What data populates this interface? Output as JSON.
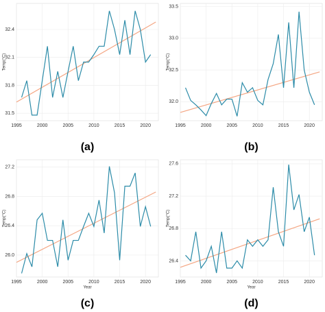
{
  "chart_data": [
    {
      "type": "line",
      "label": "(a)",
      "y_label": "Temp(°C)",
      "x": [
        1996,
        1997,
        1998,
        1999,
        2000,
        2001,
        2002,
        2003,
        2004,
        2005,
        2006,
        2007,
        2008,
        2009,
        2010,
        2011,
        2012,
        2013,
        2014,
        2015,
        2016,
        2017,
        2018,
        2019,
        2020,
        2021
      ],
      "series": [
        {
          "color": "#2b8ba8",
          "values": [
            31.67,
            31.85,
            31.48,
            31.48,
            31.85,
            32.22,
            31.67,
            31.95,
            31.67,
            31.95,
            32.22,
            31.85,
            32.05,
            32.05,
            32.13,
            32.22,
            32.22,
            32.6,
            32.4,
            32.13,
            32.5,
            32.13,
            32.6,
            32.4,
            32.05,
            32.13
          ]
        }
      ],
      "trend": {
        "color": "#f4a582",
        "x": [
          1995,
          2022
        ],
        "values": [
          31.62,
          32.48
        ]
      },
      "xlim": [
        1995,
        2022.5
      ],
      "ylim": [
        31.42,
        32.68
      ],
      "xticks": [
        1995,
        2000,
        2005,
        2010,
        2015,
        2020
      ],
      "yticks": [
        31.5,
        31.8,
        32.1,
        32.4
      ],
      "grid": true
    },
    {
      "type": "line",
      "label": "(b)",
      "y_label": "Temp(°C)",
      "x": [
        1996,
        1997,
        1998,
        1999,
        2000,
        2001,
        2002,
        2003,
        2004,
        2005,
        2006,
        2007,
        2008,
        2009,
        2010,
        2011,
        2012,
        2013,
        2014,
        2015,
        2016,
        2017,
        2018,
        2019,
        2020,
        2021
      ],
      "series": [
        {
          "color": "#2b8ba8",
          "values": [
            32.22,
            32.02,
            31.95,
            31.87,
            31.78,
            31.97,
            32.13,
            31.95,
            32.04,
            32.04,
            31.77,
            32.3,
            32.15,
            32.22,
            32.02,
            31.95,
            32.35,
            32.6,
            33.06,
            32.22,
            33.25,
            32.22,
            33.42,
            32.5,
            32.15,
            31.95
          ]
        }
      ],
      "trend": {
        "color": "#f4a582",
        "x": [
          1995,
          2022
        ],
        "values": [
          31.83,
          32.47
        ]
      },
      "xlim": [
        1995,
        2022.5
      ],
      "ylim": [
        31.7,
        33.55
      ],
      "xticks": [
        1995,
        2000,
        2005,
        2010,
        2015,
        2020
      ],
      "yticks": [
        {
          "value": 32,
          "label": "32.0"
        },
        32.5,
        {
          "value": 33,
          "label": "33.0"
        },
        33.5
      ],
      "grid": true
    },
    {
      "type": "line",
      "label": "(c)",
      "y_label": "Temp(°C)",
      "x_label": "Year",
      "x": [
        1996,
        1997,
        1998,
        1999,
        2000,
        2001,
        2002,
        2003,
        2004,
        2005,
        2006,
        2007,
        2008,
        2009,
        2010,
        2011,
        2012,
        2013,
        2014,
        2015,
        2016,
        2017,
        2018,
        2019,
        2020,
        2021
      ],
      "series": [
        {
          "color": "#2b8ba8",
          "values": [
            25.75,
            26.02,
            25.84,
            26.48,
            26.57,
            26.2,
            26.2,
            25.84,
            26.48,
            25.93,
            26.2,
            26.2,
            26.39,
            26.57,
            26.39,
            26.75,
            26.3,
            27.21,
            26.85,
            25.93,
            26.94,
            26.94,
            27.12,
            26.39,
            26.66,
            26.39
          ]
        }
      ],
      "trend": {
        "color": "#f4a582",
        "x": [
          1995,
          2022
        ],
        "values": [
          25.9,
          26.86
        ]
      },
      "xlim": [
        1995,
        2022.5
      ],
      "ylim": [
        25.7,
        27.3
      ],
      "xticks": [
        1995,
        2000,
        2005,
        2010,
        2015,
        2020
      ],
      "yticks": [
        {
          "value": 26,
          "label": "26.0"
        },
        26.4,
        26.8,
        27.2
      ],
      "grid": true
    },
    {
      "type": "line",
      "label": "(d)",
      "y_label": "Temp(°C)",
      "x_label": "Year",
      "x": [
        1996,
        1997,
        1998,
        1999,
        2000,
        2001,
        2002,
        2003,
        2004,
        2005,
        2006,
        2007,
        2008,
        2009,
        2010,
        2011,
        2012,
        2013,
        2014,
        2015,
        2016,
        2017,
        2018,
        2019,
        2020,
        2021
      ],
      "series": [
        {
          "color": "#2b8ba8",
          "values": [
            26.47,
            26.4,
            26.76,
            26.31,
            26.4,
            26.58,
            26.25,
            26.76,
            26.31,
            26.31,
            26.4,
            26.31,
            26.66,
            26.58,
            26.66,
            26.58,
            26.66,
            27.31,
            26.76,
            26.58,
            27.59,
            27.03,
            27.22,
            26.76,
            26.94,
            26.47
          ]
        }
      ],
      "trend": {
        "color": "#f4a582",
        "x": [
          1995,
          2022
        ],
        "values": [
          26.32,
          26.92
        ]
      },
      "xlim": [
        1995,
        2022.5
      ],
      "ylim": [
        26.2,
        27.65
      ],
      "xticks": [
        1995,
        2000,
        2005,
        2010,
        2015,
        2020
      ],
      "yticks": [
        26.4,
        26.8,
        27.2,
        27.6
      ],
      "grid": true
    }
  ]
}
